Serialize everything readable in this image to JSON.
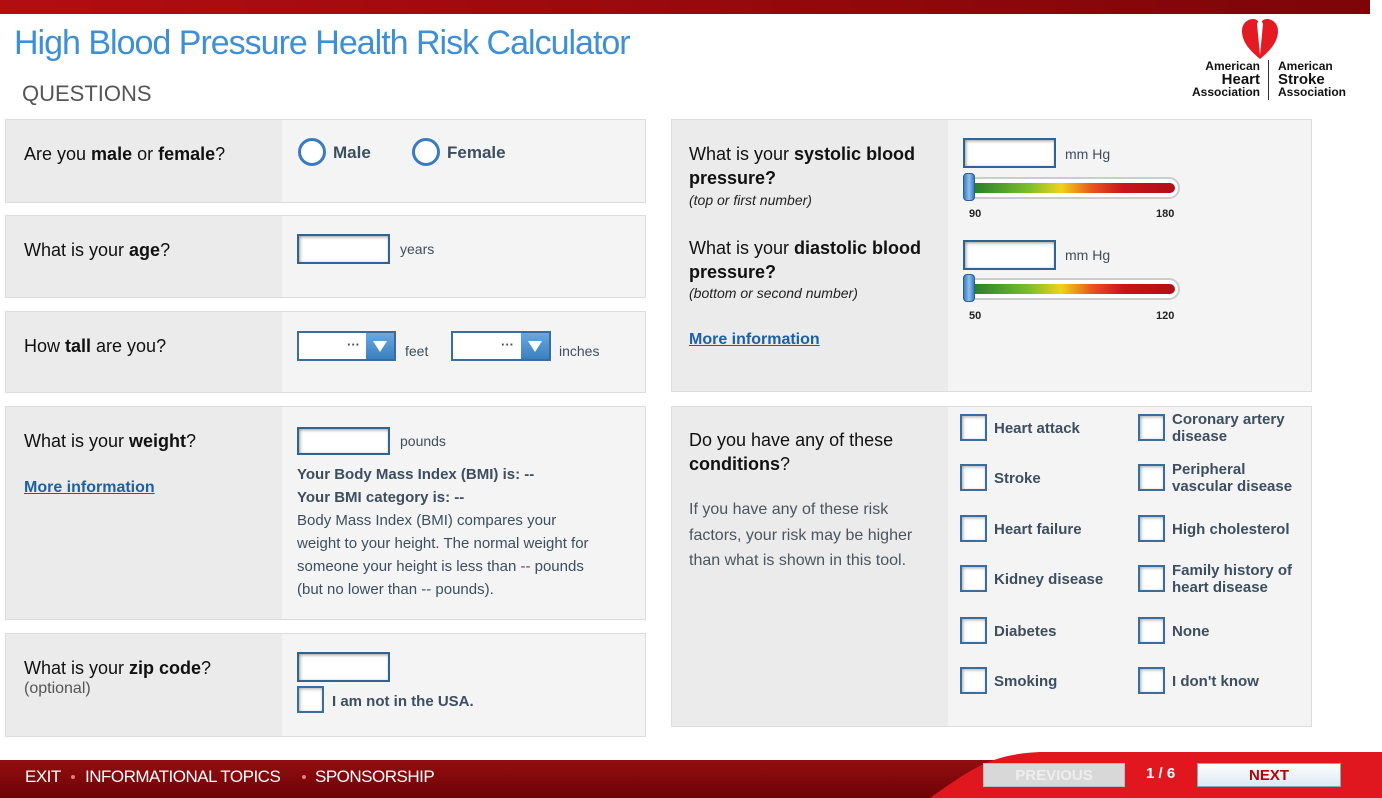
{
  "header": {
    "title": "High Blood Pressure Health Risk Calculator",
    "subtitle": "QUESTIONS"
  },
  "logo": {
    "heart": [
      "American",
      "Heart",
      "Association"
    ],
    "stroke": [
      "American",
      "Stroke",
      "Association"
    ]
  },
  "left": {
    "gender": {
      "question": [
        "Are you ",
        "male",
        " or ",
        "female",
        "?"
      ],
      "options": [
        "Male",
        "Female"
      ]
    },
    "age": {
      "question": [
        "What is your ",
        "age",
        "?"
      ],
      "unit": "years"
    },
    "height": {
      "question": [
        "How ",
        "tall",
        " are you?"
      ],
      "placeholder": "···",
      "units": [
        "feet",
        "inches"
      ]
    },
    "weight": {
      "question": [
        "What is your ",
        "weight",
        "?"
      ],
      "link": "More information",
      "unit": "pounds",
      "bmi": [
        "Your Body Mass Index (BMI) is: --",
        "Your BMI category is: --"
      ],
      "description": "Body Mass Index (BMI) compares your weight to your height. The normal weight for someone your height is less than -- pounds (but no lower than -- pounds)."
    },
    "zip": {
      "question": [
        "What is your ",
        "zip code",
        "?"
      ],
      "hint": "(optional)",
      "checkbox": "I am not in the USA."
    }
  },
  "right": {
    "systolic": {
      "question": [
        "What is your ",
        "systolic blood pressure?"
      ],
      "hint": "(top or first number)",
      "unit": "mm Hg",
      "min": 90,
      "max": 180
    },
    "diastolic": {
      "question": [
        "What is your ",
        "diastolic blood pressure?"
      ],
      "hint": "(bottom or second number)",
      "unit": "mm Hg",
      "min": 50,
      "max": 120
    },
    "link": "More information",
    "conditions": {
      "question": [
        "Do you have any of these ",
        "conditions",
        "?"
      ],
      "note": "If you have any of these risk factors, your risk may be higher than what is shown in this tool.",
      "options": [
        "Heart attack",
        "Coronary artery disease",
        "Stroke",
        "Peripheral vascular disease",
        "Heart failure",
        "High cholesterol",
        "Kidney disease",
        "Family history of heart disease",
        "Diabetes",
        "None",
        "Smoking",
        "I don't know"
      ]
    }
  },
  "footer": {
    "links": [
      "EXIT",
      "INFORMATIONAL TOPICS",
      "SPONSORSHIP"
    ],
    "previous": "PREVIOUS",
    "progress": "1 / 6",
    "next": "NEXT"
  }
}
